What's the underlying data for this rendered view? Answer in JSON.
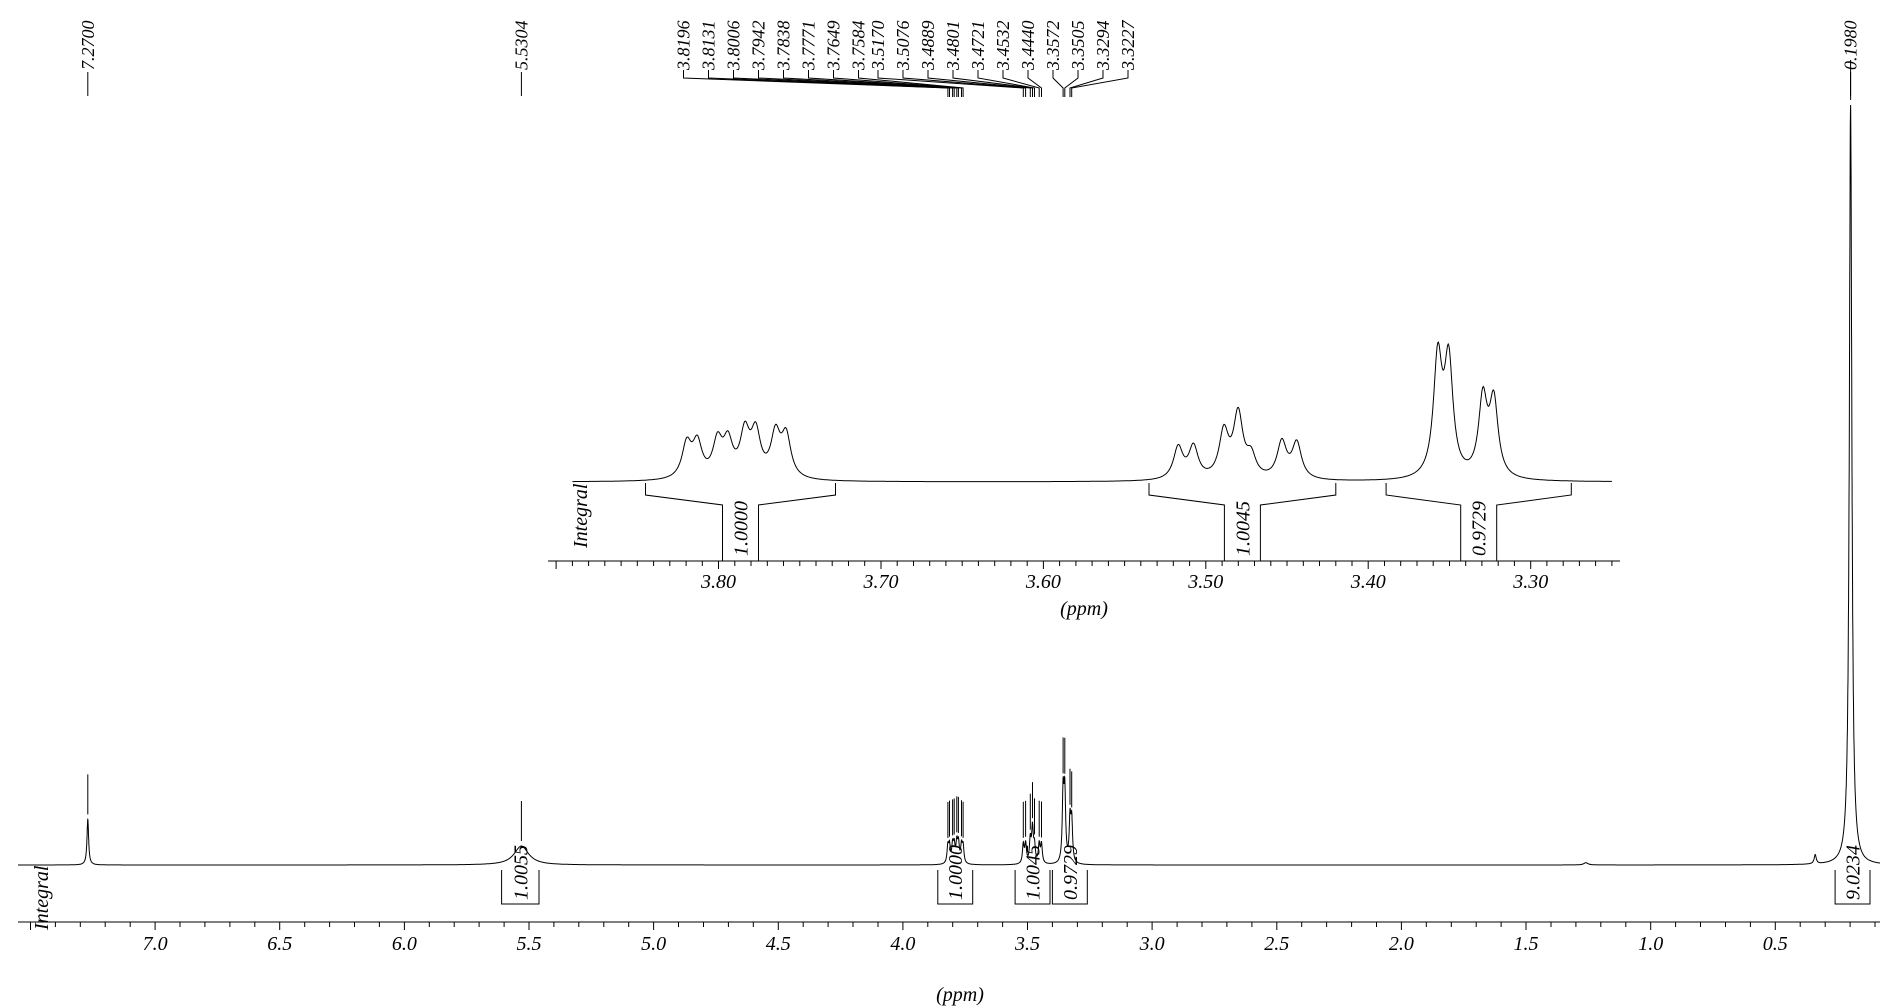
{
  "chart_data": [
    {
      "id": "main",
      "type": "line",
      "title": "",
      "xlabel": "(ppm)",
      "ylabel": "",
      "xlim": [
        7.55,
        0.08
      ],
      "x_reversed": true,
      "x_ticks": [
        7.0,
        6.5,
        6.0,
        5.5,
        5.0,
        4.5,
        4.0,
        3.5,
        3.0,
        2.5,
        2.0,
        1.5,
        1.0,
        0.5
      ],
      "x_tick_labels": [
        "7.0",
        "6.5",
        "6.0",
        "5.5",
        "5.0",
        "4.5",
        "4.0",
        "3.5",
        "3.0",
        "2.5",
        "2.0",
        "1.5",
        "1.0",
        "0.5"
      ],
      "integral_axis_label": "Integral",
      "peak_labels": [
        "7.2700",
        "5.5304",
        "3.8196",
        "3.8131",
        "3.8006",
        "3.7942",
        "3.7838",
        "3.7771",
        "3.7649",
        "3.7584",
        "3.5170",
        "3.5076",
        "3.4889",
        "3.4801",
        "3.4721",
        "3.4532",
        "3.4440",
        "3.3572",
        "3.3505",
        "3.3294",
        "3.3227",
        "0.1980"
      ],
      "peaks": [
        {
          "ppm": 7.27,
          "height": 0.06,
          "width": 0.004
        },
        {
          "ppm": 5.5304,
          "height": 0.025,
          "width": 0.035
        },
        {
          "ppm": 3.8196,
          "height": 0.022,
          "width": 0.004
        },
        {
          "ppm": 3.8131,
          "height": 0.022,
          "width": 0.004
        },
        {
          "ppm": 3.8006,
          "height": 0.022,
          "width": 0.004
        },
        {
          "ppm": 3.7942,
          "height": 0.022,
          "width": 0.004
        },
        {
          "ppm": 3.7838,
          "height": 0.025,
          "width": 0.004
        },
        {
          "ppm": 3.7771,
          "height": 0.025,
          "width": 0.004
        },
        {
          "ppm": 3.7649,
          "height": 0.022,
          "width": 0.004
        },
        {
          "ppm": 3.7584,
          "height": 0.022,
          "width": 0.004
        },
        {
          "ppm": 3.517,
          "height": 0.025,
          "width": 0.004
        },
        {
          "ppm": 3.5076,
          "height": 0.025,
          "width": 0.004
        },
        {
          "ppm": 3.4889,
          "height": 0.03,
          "width": 0.004
        },
        {
          "ppm": 3.4801,
          "height": 0.045,
          "width": 0.004
        },
        {
          "ppm": 3.4721,
          "height": 0.022,
          "width": 0.004
        },
        {
          "ppm": 3.4532,
          "height": 0.025,
          "width": 0.004
        },
        {
          "ppm": 3.444,
          "height": 0.025,
          "width": 0.004
        },
        {
          "ppm": 3.3572,
          "height": 0.09,
          "width": 0.004
        },
        {
          "ppm": 3.3505,
          "height": 0.088,
          "width": 0.004
        },
        {
          "ppm": 3.3294,
          "height": 0.055,
          "width": 0.004
        },
        {
          "ppm": 3.3227,
          "height": 0.053,
          "width": 0.004
        },
        {
          "ppm": 0.198,
          "height": 1.0,
          "width": 0.006
        },
        {
          "ppm": 0.34,
          "height": 0.012,
          "width": 0.005
        },
        {
          "ppm": 1.26,
          "height": 0.003,
          "width": 0.01
        }
      ],
      "integrals": [
        {
          "from": 5.61,
          "to": 5.46,
          "value": "1.0055"
        },
        {
          "from": 3.86,
          "to": 3.72,
          "value": "1.0000"
        },
        {
          "from": 3.55,
          "to": 3.41,
          "value": "1.0045"
        },
        {
          "from": 3.4,
          "to": 3.26,
          "value": "0.9729"
        },
        {
          "from": 0.26,
          "to": 0.12,
          "value": "9.0234"
        }
      ]
    },
    {
      "id": "inset",
      "type": "line",
      "title": "",
      "xlabel": "(ppm)",
      "ylabel": "",
      "xlim": [
        3.905,
        3.245
      ],
      "x_reversed": true,
      "x_ticks": [
        3.8,
        3.7,
        3.6,
        3.5,
        3.4,
        3.3
      ],
      "x_tick_labels": [
        "3.80",
        "3.70",
        "3.60",
        "3.50",
        "3.40",
        "3.30"
      ],
      "integral_axis_label": "Integral",
      "integrals": [
        {
          "from": 3.845,
          "to": 3.728,
          "value": "1.0000"
        },
        {
          "from": 3.535,
          "to": 3.42,
          "value": "1.0045"
        },
        {
          "from": 3.389,
          "to": 3.275,
          "value": "0.9729"
        }
      ]
    }
  ]
}
